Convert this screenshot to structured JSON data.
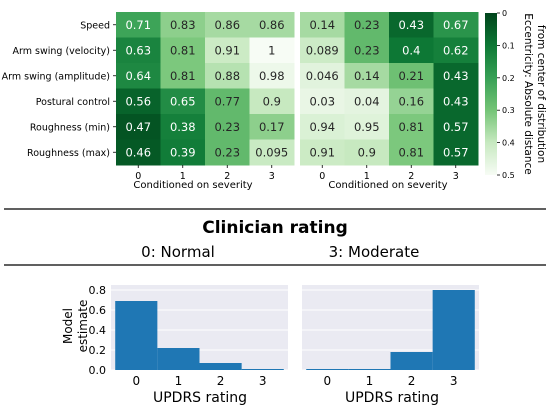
{
  "chart_data": [
    {
      "type": "heatmap",
      "xlabel": "Conditioned on severity",
      "x": [
        "0",
        "1",
        "2",
        "3"
      ],
      "y": [
        "Speed",
        "Arm swing (velocity)",
        "Arm swing (amplitude)",
        "Postural control",
        "Roughness (min)",
        "Roughness (max)"
      ],
      "values": [
        [
          0.71,
          0.83,
          0.86,
          0.86
        ],
        [
          0.63,
          0.81,
          0.91,
          1
        ],
        [
          0.64,
          0.81,
          0.88,
          0.98
        ],
        [
          0.56,
          0.65,
          0.77,
          0.9
        ],
        [
          0.47,
          0.38,
          0.23,
          0.17
        ],
        [
          0.46,
          0.39,
          0.23,
          0.095
        ]
      ]
    },
    {
      "type": "heatmap",
      "xlabel": "Conditioned on severity",
      "x": [
        "0",
        "1",
        "2",
        "3"
      ],
      "y": [
        "Speed",
        "Arm swing (velocity)",
        "Arm swing (amplitude)",
        "Postural control",
        "Roughness (min)",
        "Roughness (max)"
      ],
      "values": [
        [
          0.14,
          0.23,
          0.43,
          0.67
        ],
        [
          0.089,
          0.23,
          0.4,
          0.62
        ],
        [
          0.046,
          0.14,
          0.21,
          0.43
        ],
        [
          0.03,
          0.04,
          0.16,
          0.43
        ],
        [
          0.94,
          0.95,
          0.81,
          0.57
        ],
        [
          0.91,
          0.9,
          0.81,
          0.57
        ]
      ]
    },
    {
      "type": "bar",
      "title": "0: Normal",
      "xlabel": "UPDRS rating",
      "ylabel": "Model estimate",
      "categories": [
        "0",
        "1",
        "2",
        "3"
      ],
      "values": [
        0.69,
        0.22,
        0.07,
        0.01
      ],
      "ylim": [
        0,
        0.85
      ],
      "yticks": [
        "0.0",
        "0.2",
        "0.4",
        "0.6",
        "0.8"
      ],
      "grid": true
    },
    {
      "type": "bar",
      "title": "3: Moderate",
      "xlabel": "UPDRS rating",
      "categories": [
        "0",
        "1",
        "2",
        "3"
      ],
      "values": [
        0.01,
        0.01,
        0.18,
        0.8
      ],
      "ylim": [
        0,
        0.85
      ],
      "grid": true
    }
  ],
  "colorbar": {
    "label": "Eccentricity: Absolute distance from center of distribution",
    "label_line1": "Eccentricity: Absolute distance",
    "label_line2": "from center of distribution",
    "ticks": [
      "0",
      "0.1",
      "0.2",
      "0.3",
      "0.4",
      "0.5"
    ]
  },
  "section_title": "Clinician rating",
  "colors": {
    "bar": "#1f77b4",
    "axes_bg": "#eaeaf2",
    "grid": "#ffffff",
    "divider": "#000000"
  }
}
